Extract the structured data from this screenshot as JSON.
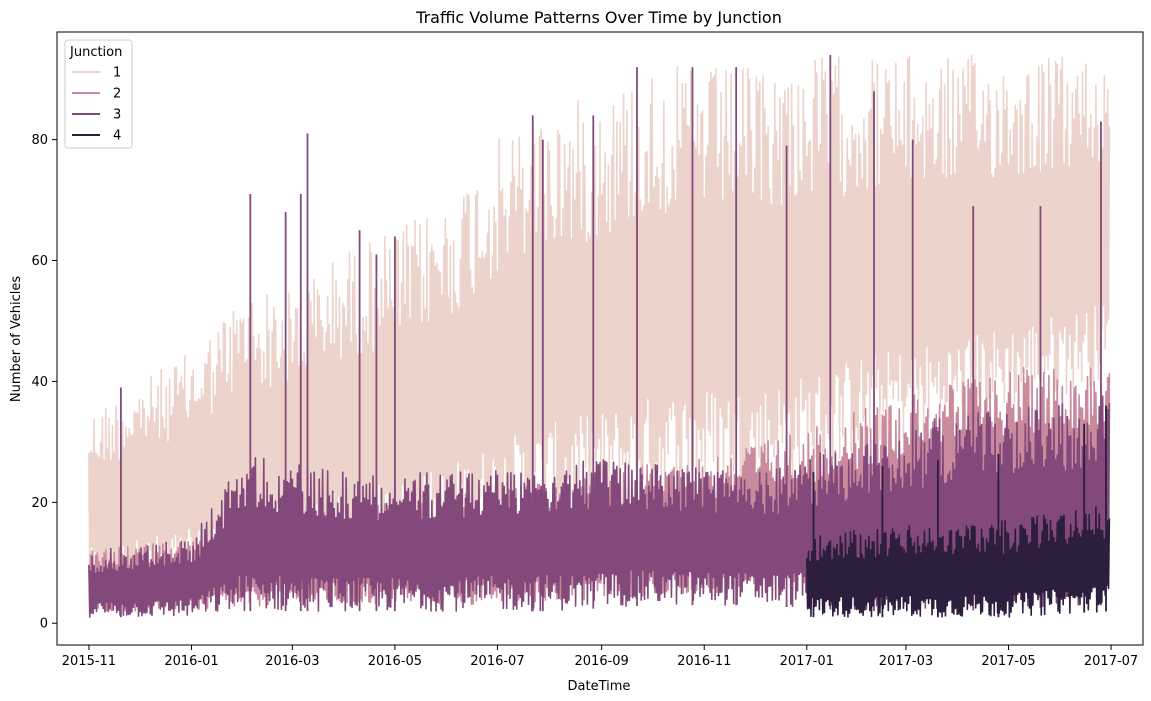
{
  "chart_data": {
    "type": "line",
    "title": "Traffic Volume Patterns Over Time by Junction",
    "xlabel": "DateTime",
    "ylabel": "Number of Vehicles",
    "xlim": [
      "2015-10-13",
      "2017-07-20"
    ],
    "ylim": [
      -3.6,
      97.8
    ],
    "x_ticks": [
      "2015-11",
      "2016-01",
      "2016-03",
      "2016-05",
      "2016-07",
      "2016-09",
      "2016-11",
      "2017-01",
      "2017-03",
      "2017-05",
      "2017-07"
    ],
    "y_ticks": [
      0,
      20,
      40,
      60,
      80
    ],
    "grid": false,
    "legend": {
      "title": "Junction",
      "position": "top-left"
    },
    "series": [
      {
        "name": "1",
        "color": "#ecd4cc",
        "start": "2015-11-01",
        "end": "2017-06-30",
        "envelope": [
          {
            "date": "2015-11-01",
            "low": 5,
            "high": 35
          },
          {
            "date": "2015-12-01",
            "low": 6,
            "high": 40
          },
          {
            "date": "2016-01-01",
            "low": 6,
            "high": 45
          },
          {
            "date": "2016-02-01",
            "low": 8,
            "high": 55
          },
          {
            "date": "2016-03-01",
            "low": 8,
            "high": 55
          },
          {
            "date": "2016-04-01",
            "low": 9,
            "high": 62
          },
          {
            "date": "2016-05-01",
            "low": 10,
            "high": 65
          },
          {
            "date": "2016-06-01",
            "low": 12,
            "high": 70
          },
          {
            "date": "2016-07-01",
            "low": 14,
            "high": 80
          },
          {
            "date": "2016-08-01",
            "low": 16,
            "high": 85
          },
          {
            "date": "2016-09-01",
            "low": 18,
            "high": 88
          },
          {
            "date": "2016-10-01",
            "low": 20,
            "high": 92
          },
          {
            "date": "2016-11-01",
            "low": 22,
            "high": 92
          },
          {
            "date": "2016-12-01",
            "low": 22,
            "high": 92
          },
          {
            "date": "2017-01-01",
            "low": 24,
            "high": 94
          },
          {
            "date": "2017-02-01",
            "low": 28,
            "high": 94
          },
          {
            "date": "2017-03-01",
            "low": 30,
            "high": 94
          },
          {
            "date": "2017-04-01",
            "low": 32,
            "high": 94
          },
          {
            "date": "2017-05-01",
            "low": 35,
            "high": 94
          },
          {
            "date": "2017-06-30",
            "low": 40,
            "high": 94
          }
        ]
      },
      {
        "name": "2",
        "color": "#c98a9e",
        "start": "2015-11-01",
        "end": "2017-06-30",
        "envelope": [
          {
            "date": "2015-11-01",
            "low": 2,
            "high": 12
          },
          {
            "date": "2016-01-01",
            "low": 2,
            "high": 14
          },
          {
            "date": "2016-03-01",
            "low": 3,
            "high": 18
          },
          {
            "date": "2016-05-01",
            "low": 3,
            "high": 20
          },
          {
            "date": "2016-07-01",
            "low": 3,
            "high": 22
          },
          {
            "date": "2016-09-01",
            "low": 4,
            "high": 25
          },
          {
            "date": "2016-11-01",
            "low": 5,
            "high": 28
          },
          {
            "date": "2017-01-01",
            "low": 6,
            "high": 32
          },
          {
            "date": "2017-03-01",
            "low": 8,
            "high": 38
          },
          {
            "date": "2017-05-01",
            "low": 10,
            "high": 42
          },
          {
            "date": "2017-06-30",
            "low": 12,
            "high": 44
          }
        ]
      },
      {
        "name": "3",
        "color": "#83497a",
        "start": "2015-11-01",
        "end": "2017-06-30",
        "envelope": [
          {
            "date": "2015-11-01",
            "low": 1,
            "high": 12
          },
          {
            "date": "2016-01-01",
            "low": 1,
            "high": 14
          },
          {
            "date": "2016-02-01",
            "low": 2,
            "high": 28
          },
          {
            "date": "2016-04-01",
            "low": 2,
            "high": 25
          },
          {
            "date": "2016-06-01",
            "low": 2,
            "high": 25
          },
          {
            "date": "2016-08-01",
            "low": 2,
            "high": 27
          },
          {
            "date": "2016-10-01",
            "low": 3,
            "high": 27
          },
          {
            "date": "2016-12-01",
            "low": 3,
            "high": 25
          },
          {
            "date": "2017-02-01",
            "low": 2,
            "high": 30
          },
          {
            "date": "2017-04-01",
            "low": 2,
            "high": 35
          },
          {
            "date": "2017-06-30",
            "low": 3,
            "high": 38
          }
        ],
        "spikes": [
          {
            "date": "2015-11-20",
            "value": 39
          },
          {
            "date": "2016-02-05",
            "value": 71
          },
          {
            "date": "2016-02-26",
            "value": 68
          },
          {
            "date": "2016-03-06",
            "value": 71
          },
          {
            "date": "2016-03-10",
            "value": 81
          },
          {
            "date": "2016-04-10",
            "value": 65
          },
          {
            "date": "2016-04-20",
            "value": 61
          },
          {
            "date": "2016-05-01",
            "value": 64
          },
          {
            "date": "2016-07-22",
            "value": 84
          },
          {
            "date": "2016-07-28",
            "value": 80
          },
          {
            "date": "2016-08-27",
            "value": 84
          },
          {
            "date": "2016-09-22",
            "value": 92
          },
          {
            "date": "2016-10-25",
            "value": 92
          },
          {
            "date": "2016-11-20",
            "value": 92
          },
          {
            "date": "2016-12-20",
            "value": 79
          },
          {
            "date": "2017-01-15",
            "value": 94
          },
          {
            "date": "2017-02-10",
            "value": 88
          },
          {
            "date": "2017-03-05",
            "value": 80
          },
          {
            "date": "2017-04-10",
            "value": 69
          },
          {
            "date": "2017-05-20",
            "value": 69
          },
          {
            "date": "2017-06-25",
            "value": 83
          }
        ]
      },
      {
        "name": "4",
        "color": "#2d1e3e",
        "start": "2017-01-01",
        "end": "2017-06-30",
        "envelope": [
          {
            "date": "2017-01-01",
            "low": 1,
            "high": 15
          },
          {
            "date": "2017-03-01",
            "low": 1,
            "high": 16
          },
          {
            "date": "2017-05-01",
            "low": 1,
            "high": 17
          },
          {
            "date": "2017-06-30",
            "low": 2,
            "high": 20
          }
        ],
        "spikes": [
          {
            "date": "2017-01-05",
            "value": 25
          },
          {
            "date": "2017-02-15",
            "value": 26
          },
          {
            "date": "2017-03-20",
            "value": 27
          },
          {
            "date": "2017-04-25",
            "value": 28
          },
          {
            "date": "2017-06-15",
            "value": 33
          },
          {
            "date": "2017-06-28",
            "value": 36
          }
        ]
      }
    ]
  }
}
